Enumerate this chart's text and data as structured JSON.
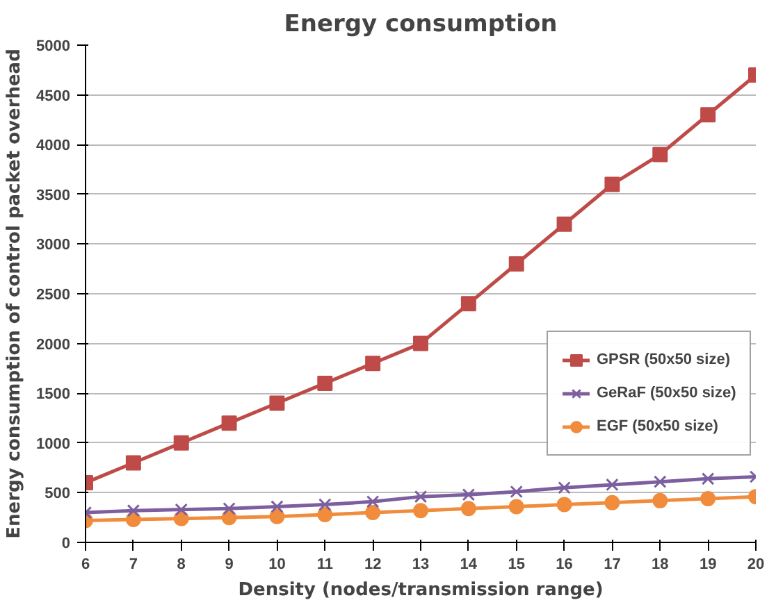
{
  "chart_data": {
    "type": "line",
    "title": "Energy consumption",
    "xlabel": "Density (nodes/transmission range)",
    "ylabel": "Energy consumption of control packet overhead",
    "categories": [
      "6",
      "7",
      "8",
      "9",
      "10",
      "11",
      "12",
      "13",
      "14",
      "15",
      "16",
      "17",
      "18",
      "19",
      "20"
    ],
    "series": [
      {
        "name": "GPSR (50x50 size)",
        "color": "#be4b48",
        "marker": "square",
        "values": [
          600,
          800,
          1000,
          1200,
          1400,
          1600,
          1800,
          2000,
          2400,
          2800,
          3200,
          3600,
          3900,
          4300,
          4700
        ]
      },
      {
        "name": "GeRaF (50x50 size)",
        "color": "#7d5fa0",
        "marker": "cross",
        "values": [
          300,
          320,
          330,
          340,
          360,
          380,
          410,
          460,
          480,
          510,
          550,
          580,
          610,
          640,
          660
        ]
      },
      {
        "name": "EGF (50x50 size)",
        "color": "#f08c3c",
        "marker": "circle",
        "values": [
          220,
          230,
          240,
          250,
          260,
          280,
          300,
          320,
          340,
          360,
          380,
          400,
          420,
          440,
          460
        ]
      }
    ],
    "ylim": [
      0,
      5000
    ],
    "yticks": [
      0,
      500,
      1000,
      1500,
      2000,
      2500,
      3000,
      3500,
      4000,
      4500,
      5000
    ],
    "grid": "y",
    "legend": "right",
    "line_style": "solid"
  }
}
